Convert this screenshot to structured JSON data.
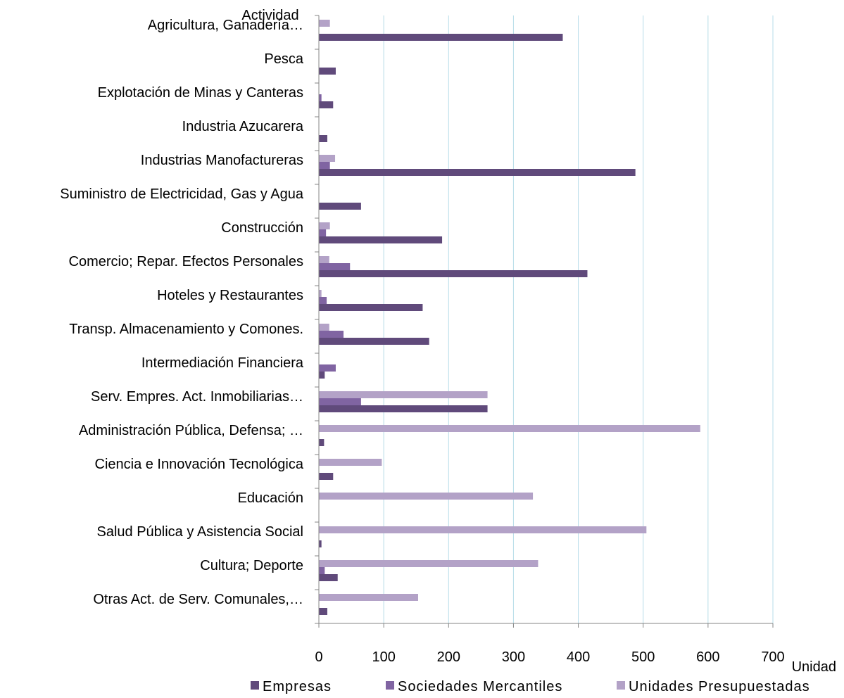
{
  "chart_data": {
    "type": "bar",
    "orientation": "horizontal",
    "y_axis_title": "Actividad",
    "x_axis_title": "Unidad",
    "xlim": [
      0,
      700
    ],
    "x_ticks": [
      "0",
      "100",
      "200",
      "300",
      "400",
      "500",
      "600",
      "700"
    ],
    "grid": "vertical gridlines",
    "legend_position": "bottom",
    "categories": [
      "Agricultura, Ganadería…",
      "Pesca",
      "Explotación de Minas y Canteras",
      "Industria Azucarera",
      "Industrias Manofactureras",
      "Suministro de Electricidad, Gas y Agua",
      "Construcción",
      "Comercio; Repar. Efectos Personales",
      "Hoteles y Restaurantes",
      "Transp. Almacenamiento y Comones.",
      "Intermediación Financiera",
      "Serv. Empres. Act. Inmobiliarias…",
      "Administración Pública, Defensa; …",
      "Ciencia e Innovación Tecnológica",
      "Educación",
      "Salud Pública y Asistencia Social",
      "Cultura; Deporte",
      "Otras Act. de Serv. Comunales,…"
    ],
    "series": [
      {
        "name": "Empresas",
        "color": "#604a7b",
        "values": [
          376,
          26,
          22,
          13,
          488,
          65,
          190,
          414,
          160,
          170,
          9,
          260,
          8,
          22,
          0,
          4,
          29,
          13
        ]
      },
      {
        "name": "Sociedades  Mercantiles",
        "color": "#8064a2",
        "values": [
          0,
          0,
          4,
          0,
          17,
          0,
          11,
          48,
          12,
          38,
          26,
          65,
          0,
          0,
          0,
          0,
          9,
          0
        ]
      },
      {
        "name": "Unidades Presupuestadas",
        "color": "#b3a2c7",
        "values": [
          17,
          0,
          0,
          0,
          25,
          0,
          17,
          16,
          4,
          16,
          0,
          260,
          588,
          97,
          330,
          505,
          338,
          153
        ]
      }
    ],
    "gridline_color": "#b7dde8",
    "axis_color": "#868686"
  }
}
